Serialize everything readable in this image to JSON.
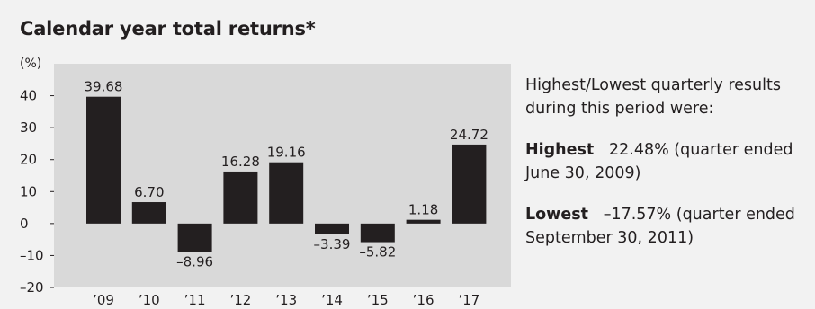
{
  "chart_data": {
    "type": "bar",
    "title": "Calendar year total returns*",
    "ylabel": "(%)",
    "xlabel": "",
    "categories": [
      "’09",
      "’10",
      "’11",
      "’12",
      "’13",
      "’14",
      "’15",
      "’16",
      "’17"
    ],
    "values": [
      39.68,
      6.7,
      -8.96,
      16.28,
      19.16,
      -3.39,
      -5.82,
      1.18,
      24.72
    ],
    "value_labels": [
      "39.68",
      "6.70",
      "–8.96",
      "16.28",
      "19.16",
      "–3.39",
      "–5.82",
      "1.18",
      "24.72"
    ],
    "ylim": [
      -20,
      50
    ],
    "yticks": [
      40,
      30,
      20,
      10,
      0,
      -10,
      -20
    ],
    "ytick_labels": [
      "40",
      "30",
      "20",
      "10",
      "0",
      "–10",
      "–20"
    ],
    "grid": false,
    "colors": {
      "bar": "#231f20",
      "plot_bg": "#d9d9d9"
    }
  },
  "notes": {
    "intro": "Highest/Lowest quarterly results during this period were:",
    "highest_label": "Highest",
    "highest_text": "22.48% (quarter ended June 30, 2009)",
    "lowest_label": "Lowest",
    "lowest_text": "–17.57% (quarter ended September 30, 2011)"
  }
}
